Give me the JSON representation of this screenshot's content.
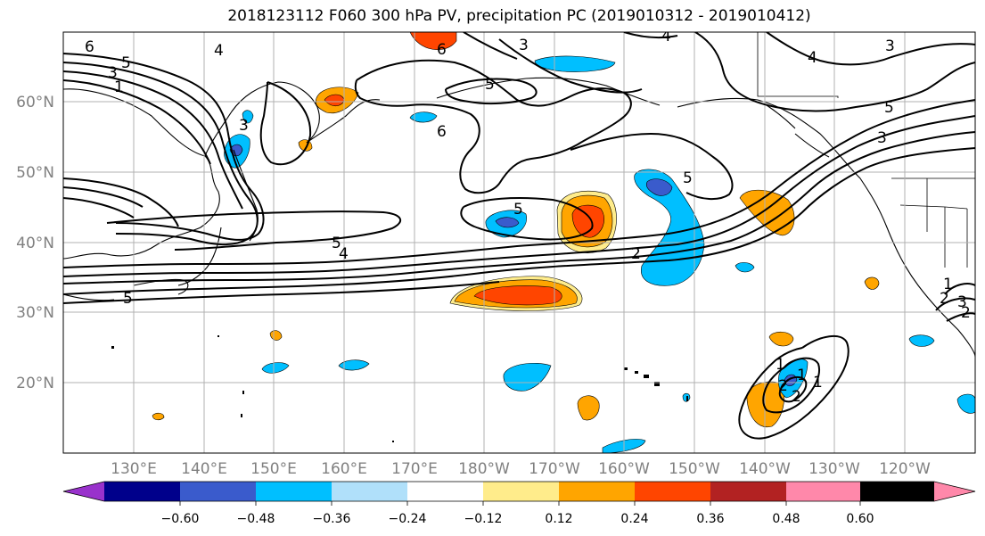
{
  "title": "2018123112 F060 300 hPa PV, precipitation PC (2019010312 - 2019010412)",
  "map": {
    "lat_ticks": [
      "60°N",
      "50°N",
      "40°N",
      "30°N",
      "20°N"
    ],
    "lon_ticks": [
      "130°E",
      "140°E",
      "150°E",
      "160°E",
      "170°E",
      "180°W",
      "170°W",
      "160°W",
      "150°W",
      "140°W",
      "130°W",
      "120°W"
    ],
    "gridlines": true
  },
  "pv_contour_labels": [
    "6",
    "4",
    "5",
    "3",
    "1",
    "3",
    "6",
    "5",
    "6",
    "2",
    "4",
    "3",
    "5",
    "5",
    "3",
    "4",
    "5",
    "5",
    "5",
    "4",
    "2",
    "1",
    "1",
    "2",
    "1",
    "2",
    "3",
    "1",
    "3",
    "2"
  ],
  "colorbar": {
    "ticks": [
      "−0.60",
      "−0.48",
      "−0.36",
      "−0.24",
      "−0.12",
      "0.12",
      "0.24",
      "0.36",
      "0.48",
      "0.60"
    ],
    "colors": [
      "#9932cc",
      "#00008b",
      "#3a5bcc",
      "#00bfff",
      "#b0e0fa",
      "#ffffff",
      "#ffec8b",
      "#ffa500",
      "#ff4500",
      "#b22222",
      "#ff88aa"
    ]
  }
}
